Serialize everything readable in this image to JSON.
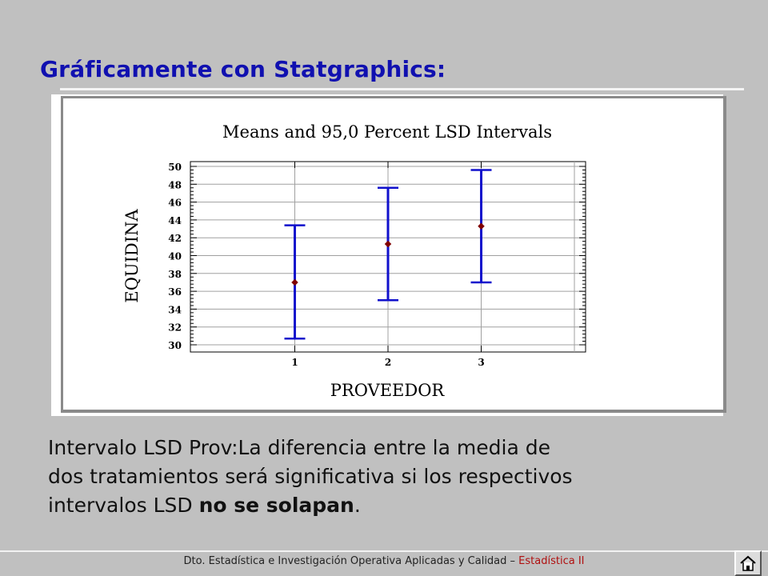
{
  "slide": {
    "title": "Gráficamente con Statgraphics:"
  },
  "chart_data": {
    "type": "scatter",
    "title": "Means and 95,0 Percent LSD Intervals",
    "xlabel": "PROVEEDOR",
    "ylabel": "EQUIDINA",
    "categories": [
      "1",
      "2",
      "3"
    ],
    "y_ticks": [
      "30",
      "32",
      "34",
      "36",
      "38",
      "40",
      "42",
      "44",
      "46",
      "48",
      "50"
    ],
    "ylim": [
      30,
      50
    ],
    "grid": true,
    "series": [
      {
        "means": [
          37.0,
          41.3,
          43.3
        ],
        "lower": [
          30.7,
          35.0,
          37.0
        ],
        "upper": [
          43.4,
          47.6,
          49.6
        ]
      }
    ],
    "colors": {
      "interval": "#1010cc",
      "mean": "#800000",
      "grid": "#a0a0a0"
    }
  },
  "body": {
    "line1": "Intervalo LSD Prov:La diferencia entre la media de",
    "line2": "dos tratamientos será significativa si los respectivos",
    "line3_pre": "intervalos LSD ",
    "line3_bold": "no se solapan",
    "line3_post": "."
  },
  "footer": {
    "dept": "Dto. Estadística e Investigación Operativa Aplicadas y Calidad – ",
    "course": "Estadística II",
    "home_icon": "home-icon"
  }
}
